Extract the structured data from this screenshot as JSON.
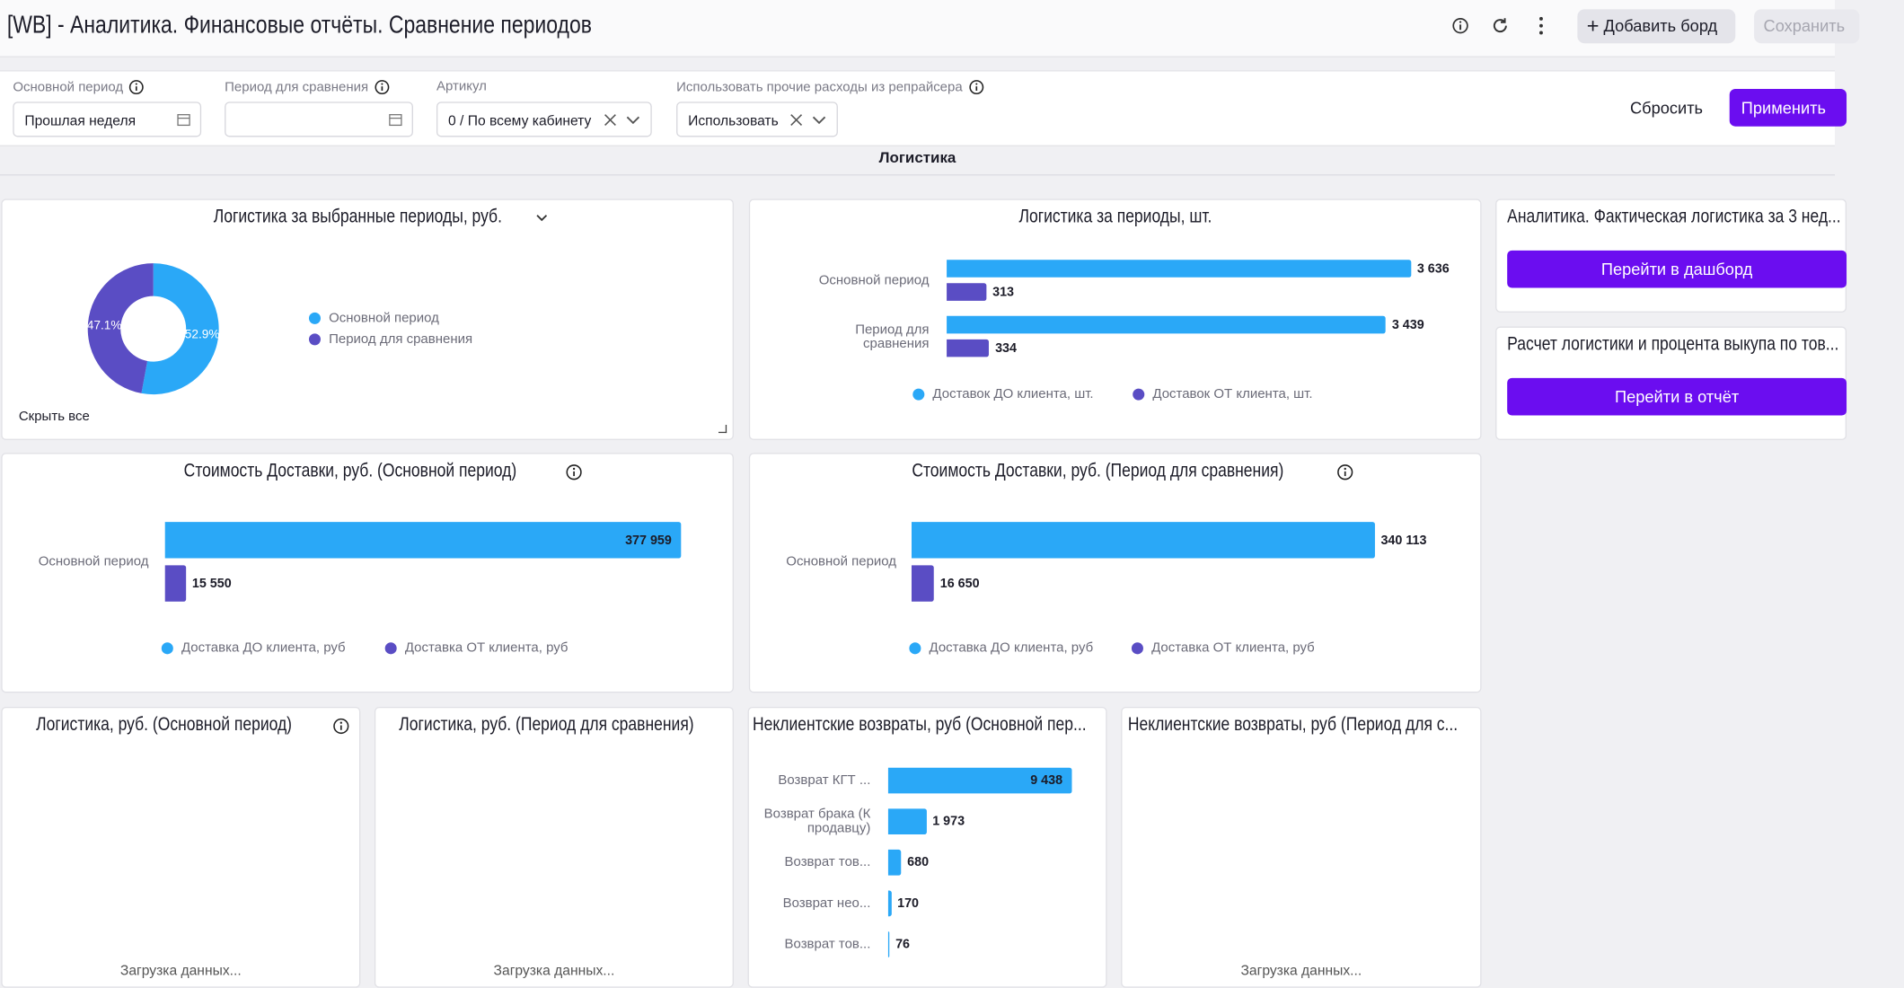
{
  "header": {
    "title": "[WB] - Аналитика. Финансовые отчёты. Сравнение периодов",
    "add_board": "Добавить борд",
    "save": "Сохранить"
  },
  "filters": [
    {
      "label": "Основной период",
      "value": "Прошлая неделя"
    },
    {
      "label": "Период для сравнения"
    },
    {
      "label": "Артикул",
      "value": "0 / По всему кабинету"
    },
    {
      "label": "Использовать прочие расходы из репрайсера",
      "value": "Использовать"
    }
  ],
  "actions": {
    "reset": "Сбросить",
    "apply": "Применить"
  },
  "section": "Логистика",
  "widgets": [
    {
      "type": "pie",
      "title": "Логистика за выбранные периоды, руб.",
      "categories": [
        "Основной период",
        "Период для сравнения"
      ],
      "values": [
        52.9,
        47.1
      ],
      "value_labels": [
        "52.9%",
        "47.1%"
      ],
      "colors": [
        "#2aa8f7",
        "#5a4dc4"
      ],
      "hide_all": "Скрыть все"
    },
    {
      "type": "hbar",
      "title": "Логистика за периоды, шт.",
      "categories": [
        "Основной период",
        "Период для сравнения"
      ],
      "series": [
        {
          "name": "Доставок ДО клиента, шт.",
          "color": "#2aa8f7",
          "values": [
            3636,
            3439
          ],
          "value_labels": [
            "3 636",
            "3 439"
          ]
        },
        {
          "name": "Доставок ОТ клиента, шт.",
          "color": "#5a4dc4",
          "values": [
            313,
            334
          ]
        }
      ]
    },
    {
      "type": "link",
      "title": "Аналитика. Фактическая логистика за 3 нед...",
      "button": "Перейти в дашборд"
    },
    {
      "type": "link",
      "title": "Расчет логистики и процента выкупа по тов...",
      "button": "Перейти в отчёт"
    },
    {
      "type": "hbar",
      "title": "Стоимость Доставки, руб. (Основной период)",
      "categories": [
        "Основной период"
      ],
      "series": [
        {
          "name": "Доставка ДО клиента, руб",
          "color": "#2aa8f7",
          "values": [
            377959
          ],
          "value_labels": [
            "377 959"
          ]
        },
        {
          "name": "Доставка ОТ клиента, руб",
          "color": "#5a4dc4",
          "values": [
            15550
          ],
          "value_labels": [
            "15 550"
          ]
        }
      ]
    },
    {
      "type": "hbar",
      "title": "Стоимость Доставки, руб. (Период для сравнения)",
      "categories": [
        "Основной период"
      ],
      "series": [
        {
          "name": "Доставка ДО клиента, руб",
          "color": "#2aa8f7",
          "values": [
            340113
          ],
          "value_labels": [
            "340 113"
          ]
        },
        {
          "name": "Доставка ОТ клиента, руб",
          "color": "#5a4dc4",
          "values": [
            16650
          ],
          "value_labels": [
            "16 650"
          ]
        }
      ]
    },
    {
      "type": "loading",
      "title": "Логистика, руб. (Основной период)",
      "status": "Загрузка данных..."
    },
    {
      "type": "loading",
      "title": "Логистика, руб. (Период для сравнения)",
      "status": "Загрузка данных..."
    },
    {
      "type": "hbar",
      "title": "Неклиентские возвраты, руб (Основной пер...",
      "categories": [
        "Возврат КГТ ...",
        "Возврат брака (К продавцу)",
        "Возврат тов...",
        "Возврат нео...",
        "Возврат тов..."
      ],
      "series": [
        {
          "color": "#2aa8f7",
          "values": [
            9438,
            1973,
            680,
            170,
            76
          ],
          "value_labels": [
            "9 438",
            "1 973",
            "680",
            "170",
            "76"
          ]
        }
      ]
    },
    {
      "type": "loading",
      "title": "Неклиентские возвраты, руб (Период для с...",
      "status": "Загрузка данных..."
    }
  ]
}
